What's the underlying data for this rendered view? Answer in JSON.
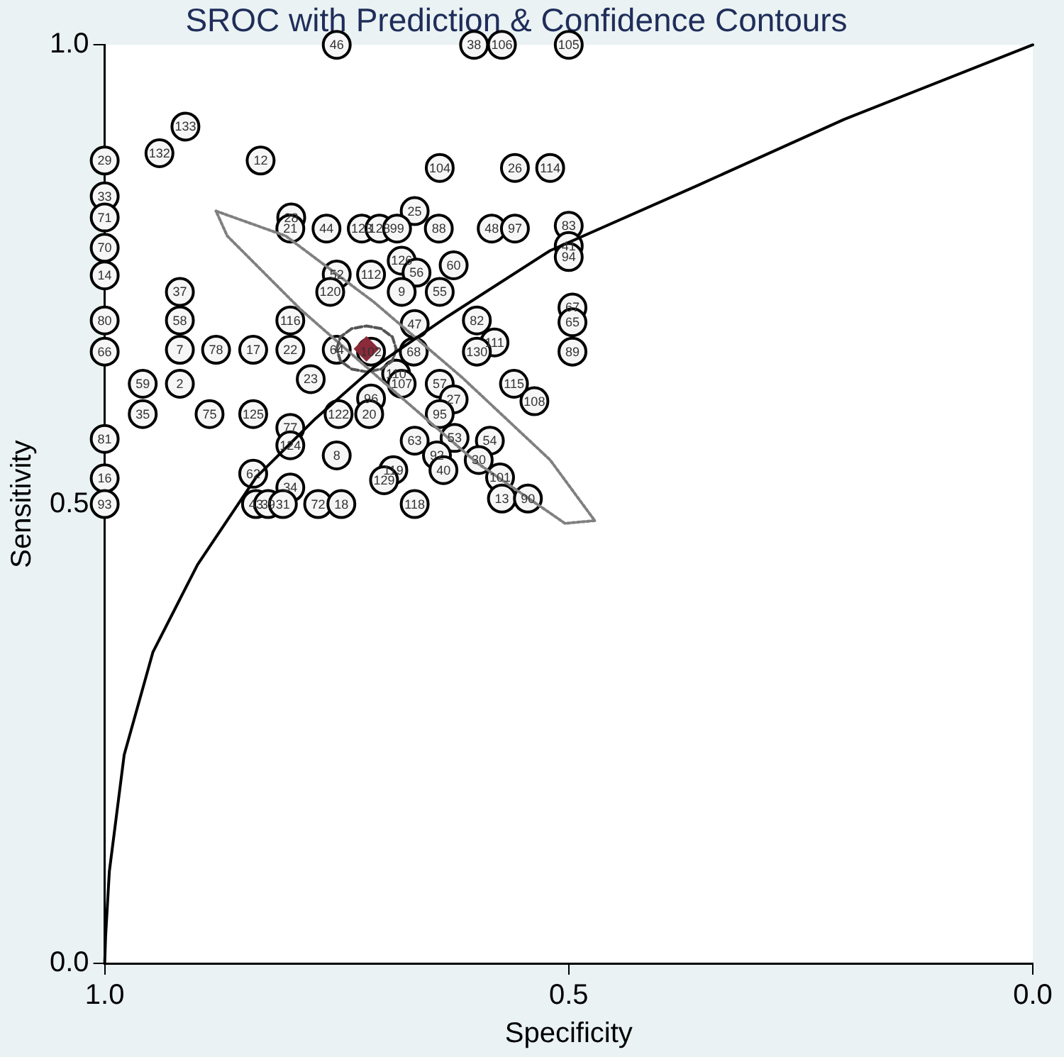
{
  "chart_data": {
    "type": "scatter",
    "title": "SROC with Prediction & Confidence Contours",
    "xlabel": "Specificity",
    "ylabel": "Sensitivity",
    "xlim": [
      1,
      0
    ],
    "ylim": [
      0,
      1
    ],
    "xticks": [
      {
        "value": 1,
        "label": "1.0"
      },
      {
        "value": 0.5,
        "label": "0.5"
      },
      {
        "value": 0,
        "label": "0.0"
      }
    ],
    "yticks": [
      {
        "value": 0,
        "label": "0.0"
      },
      {
        "value": 0.5,
        "label": "0.5"
      },
      {
        "value": 1,
        "label": "1.0"
      }
    ],
    "grid": false,
    "legend": false,
    "annotations": [
      {
        "text": "46",
        "x": 0.75,
        "y": 1
      },
      {
        "text": "38",
        "x": 0.602,
        "y": 1
      },
      {
        "text": "106",
        "x": 0.572,
        "y": 1
      },
      {
        "text": "105",
        "x": 0.5,
        "y": 1
      },
      {
        "text": "29",
        "x": 1,
        "y": 0.874
      },
      {
        "text": "33",
        "x": 1,
        "y": 0.835
      },
      {
        "text": "71",
        "x": 1,
        "y": 0.812
      },
      {
        "text": "70",
        "x": 1,
        "y": 0.779
      },
      {
        "text": "14",
        "x": 1,
        "y": 0.749
      },
      {
        "text": "80",
        "x": 1,
        "y": 0.7
      },
      {
        "text": "66",
        "x": 1,
        "y": 0.666
      },
      {
        "text": "81",
        "x": 1,
        "y": 0.571
      },
      {
        "text": "16",
        "x": 1,
        "y": 0.528
      },
      {
        "text": "93",
        "x": 1,
        "y": 0.5
      },
      {
        "text": "133",
        "x": 0.913,
        "y": 0.911
      },
      {
        "text": "132",
        "x": 0.941,
        "y": 0.882
      },
      {
        "text": "12",
        "x": 0.832,
        "y": 0.874
      },
      {
        "text": "28",
        "x": 0.799,
        "y": 0.812
      },
      {
        "text": "21",
        "x": 0.8,
        "y": 0.8
      },
      {
        "text": "44",
        "x": 0.761,
        "y": 0.8
      },
      {
        "text": "104",
        "x": 0.639,
        "y": 0.866
      },
      {
        "text": "26",
        "x": 0.558,
        "y": 0.866
      },
      {
        "text": "114",
        "x": 0.52,
        "y": 0.866
      },
      {
        "text": "25",
        "x": 0.666,
        "y": 0.819
      },
      {
        "text": "123",
        "x": 0.723,
        "y": 0.8
      },
      {
        "text": "128",
        "x": 0.704,
        "y": 0.8
      },
      {
        "text": "99",
        "x": 0.685,
        "y": 0.8
      },
      {
        "text": "88",
        "x": 0.64,
        "y": 0.8
      },
      {
        "text": "48",
        "x": 0.583,
        "y": 0.8
      },
      {
        "text": "97",
        "x": 0.558,
        "y": 0.8
      },
      {
        "text": "83",
        "x": 0.5,
        "y": 0.803
      },
      {
        "text": "41",
        "x": 0.5,
        "y": 0.781
      },
      {
        "text": "94",
        "x": 0.5,
        "y": 0.769
      },
      {
        "text": "126",
        "x": 0.68,
        "y": 0.765
      },
      {
        "text": "60",
        "x": 0.624,
        "y": 0.76
      },
      {
        "text": "112",
        "x": 0.713,
        "y": 0.75
      },
      {
        "text": "56",
        "x": 0.664,
        "y": 0.752
      },
      {
        "text": "52",
        "x": 0.75,
        "y": 0.75
      },
      {
        "text": "9",
        "x": 0.68,
        "y": 0.731
      },
      {
        "text": "55",
        "x": 0.639,
        "y": 0.731
      },
      {
        "text": "120",
        "x": 0.757,
        "y": 0.731
      },
      {
        "text": "67",
        "x": 0.496,
        "y": 0.714
      },
      {
        "text": "65",
        "x": 0.496,
        "y": 0.698
      },
      {
        "text": "82",
        "x": 0.599,
        "y": 0.7
      },
      {
        "text": "47",
        "x": 0.666,
        "y": 0.696
      },
      {
        "text": "111",
        "x": 0.58,
        "y": 0.676
      },
      {
        "text": "130",
        "x": 0.599,
        "y": 0.666
      },
      {
        "text": "89",
        "x": 0.496,
        "y": 0.666
      },
      {
        "text": "102",
        "x": 0.713,
        "y": 0.666
      },
      {
        "text": "68",
        "x": 0.667,
        "y": 0.666
      },
      {
        "text": "110",
        "x": 0.686,
        "y": 0.642
      },
      {
        "text": "107",
        "x": 0.68,
        "y": 0.631
      },
      {
        "text": "57",
        "x": 0.639,
        "y": 0.631
      },
      {
        "text": "115",
        "x": 0.559,
        "y": 0.631
      },
      {
        "text": "108",
        "x": 0.537,
        "y": 0.612
      },
      {
        "text": "96",
        "x": 0.713,
        "y": 0.615
      },
      {
        "text": "20",
        "x": 0.715,
        "y": 0.598
      },
      {
        "text": "27",
        "x": 0.624,
        "y": 0.614
      },
      {
        "text": "95",
        "x": 0.639,
        "y": 0.598
      },
      {
        "text": "63",
        "x": 0.666,
        "y": 0.569
      },
      {
        "text": "53",
        "x": 0.623,
        "y": 0.572
      },
      {
        "text": "54",
        "x": 0.585,
        "y": 0.569
      },
      {
        "text": "92",
        "x": 0.642,
        "y": 0.553
      },
      {
        "text": "40",
        "x": 0.635,
        "y": 0.537
      },
      {
        "text": "30",
        "x": 0.597,
        "y": 0.548
      },
      {
        "text": "101",
        "x": 0.574,
        "y": 0.529
      },
      {
        "text": "13",
        "x": 0.572,
        "y": 0.506
      },
      {
        "text": "90",
        "x": 0.544,
        "y": 0.506
      },
      {
        "text": "119",
        "x": 0.689,
        "y": 0.537
      },
      {
        "text": "129",
        "x": 0.699,
        "y": 0.526
      },
      {
        "text": "118",
        "x": 0.666,
        "y": 0.5
      },
      {
        "text": "37",
        "x": 0.919,
        "y": 0.731
      },
      {
        "text": "58",
        "x": 0.919,
        "y": 0.7
      },
      {
        "text": "7",
        "x": 0.919,
        "y": 0.668
      },
      {
        "text": "78",
        "x": 0.88,
        "y": 0.668
      },
      {
        "text": "17",
        "x": 0.84,
        "y": 0.668
      },
      {
        "text": "22",
        "x": 0.8,
        "y": 0.668
      },
      {
        "text": "64",
        "x": 0.75,
        "y": 0.668
      },
      {
        "text": "116",
        "x": 0.8,
        "y": 0.7
      },
      {
        "text": "59",
        "x": 0.959,
        "y": 0.631
      },
      {
        "text": "2",
        "x": 0.919,
        "y": 0.631
      },
      {
        "text": "23",
        "x": 0.778,
        "y": 0.636
      },
      {
        "text": "35",
        "x": 0.959,
        "y": 0.598
      },
      {
        "text": "75",
        "x": 0.887,
        "y": 0.598
      },
      {
        "text": "125",
        "x": 0.84,
        "y": 0.598
      },
      {
        "text": "122",
        "x": 0.748,
        "y": 0.598
      },
      {
        "text": "77",
        "x": 0.8,
        "y": 0.583
      },
      {
        "text": "124",
        "x": 0.8,
        "y": 0.564
      },
      {
        "text": "8",
        "x": 0.75,
        "y": 0.553
      },
      {
        "text": "62",
        "x": 0.84,
        "y": 0.533
      },
      {
        "text": "34",
        "x": 0.8,
        "y": 0.518
      },
      {
        "text": "43",
        "x": 0.837,
        "y": 0.5
      },
      {
        "text": "39",
        "x": 0.824,
        "y": 0.5
      },
      {
        "text": "31",
        "x": 0.808,
        "y": 0.5
      },
      {
        "text": "72",
        "x": 0.77,
        "y": 0.5
      },
      {
        "text": "18",
        "x": 0.745,
        "y": 0.5
      }
    ],
    "series": [
      {
        "type": "scatter",
        "marker": "circle",
        "color": "#000000",
        "x": [
          0.75,
          0.602,
          0.572,
          0.5,
          1,
          1,
          1,
          1,
          1,
          1,
          1,
          1,
          1,
          1,
          0.913,
          0.941,
          0.832,
          0.799,
          0.8,
          0.761,
          0.639,
          0.558,
          0.52,
          0.666,
          0.723,
          0.704,
          0.685,
          0.64,
          0.583,
          0.558,
          0.5,
          0.5,
          0.5,
          0.68,
          0.624,
          0.713,
          0.664,
          0.75,
          0.68,
          0.639,
          0.757,
          0.496,
          0.496,
          0.599,
          0.666,
          0.58,
          0.599,
          0.496,
          0.713,
          0.667,
          0.686,
          0.68,
          0.639,
          0.559,
          0.537,
          0.713,
          0.715,
          0.624,
          0.639,
          0.666,
          0.623,
          0.585,
          0.642,
          0.635,
          0.597,
          0.574,
          0.572,
          0.544,
          0.689,
          0.699,
          0.666,
          0.919,
          0.919,
          0.919,
          0.88,
          0.84,
          0.8,
          0.75,
          0.8,
          0.959,
          0.919,
          0.778,
          0.959,
          0.887,
          0.84,
          0.748,
          0.8,
          0.8,
          0.75,
          0.84,
          0.8,
          0.837,
          0.824,
          0.808,
          0.77,
          0.745
        ],
        "values": [
          1,
          1,
          1,
          1,
          0.874,
          0.835,
          0.812,
          0.779,
          0.749,
          0.7,
          0.666,
          0.571,
          0.528,
          0.5,
          0.911,
          0.882,
          0.874,
          0.812,
          0.8,
          0.8,
          0.866,
          0.866,
          0.866,
          0.819,
          0.8,
          0.8,
          0.8,
          0.8,
          0.8,
          0.8,
          0.803,
          0.781,
          0.769,
          0.765,
          0.76,
          0.75,
          0.752,
          0.75,
          0.731,
          0.731,
          0.731,
          0.714,
          0.698,
          0.7,
          0.696,
          0.676,
          0.666,
          0.666,
          0.666,
          0.666,
          0.642,
          0.631,
          0.631,
          0.631,
          0.612,
          0.615,
          0.598,
          0.614,
          0.598,
          0.569,
          0.572,
          0.569,
          0.553,
          0.537,
          0.548,
          0.529,
          0.506,
          0.506,
          0.537,
          0.526,
          0.5,
          0.731,
          0.7,
          0.668,
          0.668,
          0.668,
          0.668,
          0.668,
          0.7,
          0.631,
          0.631,
          0.636,
          0.598,
          0.598,
          0.598,
          0.598,
          0.583,
          0.564,
          0.553,
          0.533,
          0.518,
          0.5,
          0.5,
          0.5,
          0.5,
          0.5
        ],
        "line_style": "none"
      },
      {
        "type": "line",
        "color": "#000000",
        "line_style": "solid",
        "marker": "none",
        "x": [
          1,
          0.999,
          0.995,
          0.979,
          0.948,
          0.9,
          0.837,
          0.773,
          0.71,
          0.631,
          0.52,
          0.361,
          0.203,
          0
        ],
        "values": [
          0,
          0.03,
          0.1,
          0.227,
          0.339,
          0.434,
          0.529,
          0.593,
          0.649,
          0.704,
          0.776,
          0.847,
          0.919,
          1
        ]
      },
      {
        "type": "scatter",
        "marker": "diamond",
        "color": "#8b2a3a",
        "x": [
          0.718
        ],
        "values": [
          0.669
        ]
      },
      {
        "type": "line",
        "color": "#555555",
        "line_style": "dashed",
        "marker": "none",
        "x": [
          0.75,
          0.746,
          0.734,
          0.718,
          0.702,
          0.69,
          0.686
        ],
        "values": [
          0.669,
          0.682,
          0.691,
          0.694,
          0.691,
          0.682,
          0.669
        ]
      },
      {
        "type": "line",
        "color": "#555555",
        "line_style": "dashed",
        "marker": "none",
        "x": [
          0.686,
          0.69,
          0.702,
          0.718,
          0.734,
          0.746,
          0.75
        ],
        "values": [
          0.669,
          0.656,
          0.647,
          0.644,
          0.647,
          0.656,
          0.669
        ]
      },
      {
        "type": "line",
        "color": "#808080",
        "line_style": "dotted",
        "marker": "none",
        "x": [
          0.88,
          0.805,
          0.71,
          0.615,
          0.52,
          0.472
        ],
        "values": [
          0.819,
          0.792,
          0.72,
          0.638,
          0.548,
          0.482
        ]
      },
      {
        "type": "line",
        "color": "#808080",
        "line_style": "dotted",
        "marker": "none",
        "x": [
          0.472,
          0.504,
          0.599,
          0.694,
          0.789,
          0.868,
          0.88
        ],
        "values": [
          0.482,
          0.479,
          0.545,
          0.628,
          0.712,
          0.792,
          0.819
        ]
      }
    ]
  }
}
